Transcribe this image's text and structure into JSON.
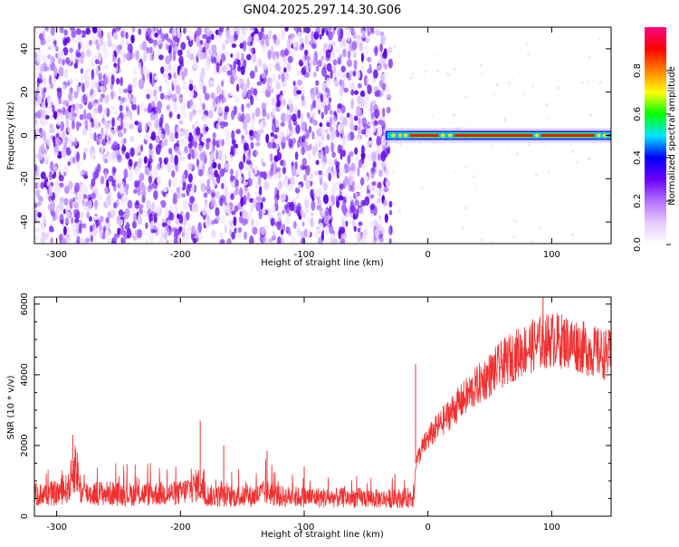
{
  "figure_title": "GN04.2025.297.14.30.G06",
  "chart_data": [
    {
      "type": "heatmap",
      "title": "GN04.2025.297.14.30.G06",
      "xlabel": "Height of straight line (km)",
      "ylabel": "Frequency (Hz)",
      "xlim": [
        -318,
        148
      ],
      "ylim": [
        -50,
        50
      ],
      "x_ticks": [
        -300,
        -200,
        -100,
        0,
        100
      ],
      "y_ticks": [
        -40,
        -20,
        0,
        20,
        40
      ],
      "noise_region_x": [
        -318,
        -30
      ],
      "signal_frequency_hz": 0,
      "signal_region_x": [
        -30,
        148
      ],
      "colorbar": {
        "label": "Normalized spectral amplitude",
        "range": [
          0,
          1
        ],
        "ticks": [
          "0.0",
          "0.2",
          "0.4",
          "0.6",
          "0.8"
        ],
        "colors": [
          "#ffffff",
          "#e6ccff",
          "#b070ff",
          "#6a00ff",
          "#0000ff",
          "#00e5ff",
          "#00ff00",
          "#ffff00",
          "#ff8000",
          "#ff0000",
          "#ff0080"
        ]
      }
    },
    {
      "type": "line",
      "xlabel": "Height of straight line (km)",
      "ylabel": "SNR (10 * v/v)",
      "xlim": [
        -318,
        148
      ],
      "ylim": [
        0,
        6200
      ],
      "x_ticks": [
        -300,
        -200,
        -100,
        0,
        100
      ],
      "y_ticks": [
        0,
        2000,
        4000,
        6000
      ],
      "line_color": "#f03030",
      "series": [
        {
          "x": [
            -318,
            -300,
            -290,
            -285,
            -280,
            -260,
            -240,
            -220,
            -200,
            -185,
            -180,
            -160,
            -140,
            -130,
            -120,
            -100,
            -80,
            -60,
            -40,
            -20,
            -12,
            -10,
            -5,
            0,
            10,
            20,
            30,
            40,
            50,
            60,
            70,
            80,
            90,
            100,
            110,
            120,
            130,
            140,
            148
          ],
          "y": [
            600,
            650,
            800,
            1500,
            650,
            650,
            620,
            640,
            650,
            900,
            580,
            560,
            560,
            700,
            560,
            540,
            520,
            520,
            500,
            500,
            550,
            1500,
            1900,
            2200,
            2600,
            3000,
            3350,
            3700,
            4000,
            4300,
            4550,
            4750,
            4900,
            5000,
            4950,
            4850,
            4700,
            4600,
            4550
          ]
        }
      ],
      "spikes": [
        {
          "x": -287,
          "y": 2300
        },
        {
          "x": -184,
          "y": 2700
        },
        {
          "x": -165,
          "y": 2000
        },
        {
          "x": -130,
          "y": 1850
        },
        {
          "x": -100,
          "y": 1400
        },
        {
          "x": -10,
          "y": 4300
        },
        {
          "x": 93,
          "y": 6200
        }
      ]
    }
  ]
}
